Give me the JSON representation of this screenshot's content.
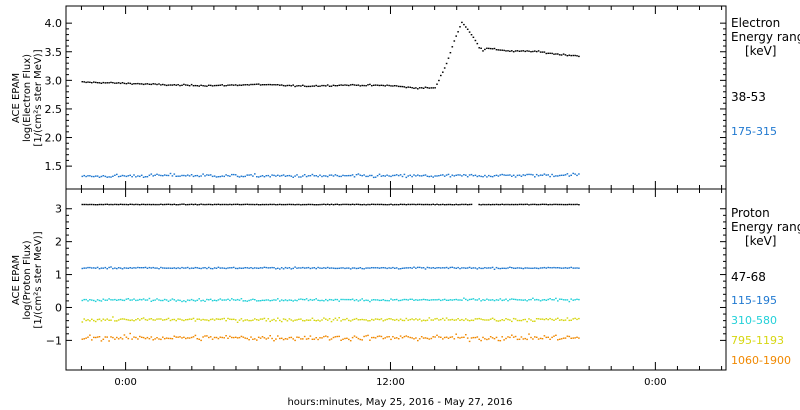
{
  "colors": {
    "axis": "#000000",
    "background": "#ffffff"
  },
  "x_axis": {
    "label": "hours:minutes, May 25, 2016 - May 27, 2016",
    "ticks": [
      {
        "hours": 0,
        "label": "0:00"
      },
      {
        "hours": 12,
        "label": "12:00"
      },
      {
        "hours": 24,
        "label": "0:00"
      }
    ],
    "minor_step_hours": 1,
    "range_hours": [
      -2.7,
      27.2
    ]
  },
  "chart_data": [
    {
      "type": "scatter",
      "ylabel_lines": [
        "ACE EPAM",
        "log(Electron Flux)",
        "[1/(cm²s ster MeV)]"
      ],
      "ylim": [
        1.1,
        4.3
      ],
      "yticks": [
        1.5,
        2.0,
        2.5,
        3.0,
        3.5,
        4.0
      ],
      "ytick_labels": [
        "1.5",
        "2.0",
        "2.5",
        "3.0",
        "3.5",
        "4.0"
      ],
      "legend": {
        "title_lines": [
          "Electron",
          "Energy range",
          "[keV]"
        ],
        "entries": [
          "38-53",
          "175-315"
        ]
      },
      "series": [
        {
          "name": "38-53",
          "color": "#000000",
          "x_hours": [
            -2.0,
            0.0,
            2.0,
            4.0,
            6.0,
            8.0,
            10.0,
            12.0,
            13.0,
            14.0,
            14.5,
            14.9,
            15.2,
            15.5,
            15.8,
            16.1,
            16.4,
            16.8,
            17.5,
            18.5,
            19.5,
            20.5
          ],
          "values": [
            2.98,
            2.96,
            2.93,
            2.92,
            2.94,
            2.91,
            2.93,
            2.92,
            2.88,
            2.88,
            3.3,
            3.75,
            4.03,
            3.88,
            3.72,
            3.55,
            3.57,
            3.55,
            3.52,
            3.52,
            3.47,
            3.44
          ]
        },
        {
          "name": "175-315",
          "color": "#1f78d0",
          "x_hours": [
            -2.0,
            2.0,
            6.0,
            10.0,
            14.0,
            18.0,
            20.5
          ],
          "values": [
            1.33,
            1.35,
            1.34,
            1.34,
            1.34,
            1.35,
            1.36
          ]
        }
      ]
    },
    {
      "type": "scatter",
      "ylabel_lines": [
        "ACE EPAM",
        "log(Proton Flux)",
        "[1/(cm²s ster MeV)]"
      ],
      "ylim": [
        -1.9,
        3.6
      ],
      "yticks": [
        -1,
        0,
        1,
        2,
        3
      ],
      "ytick_labels": [
        "−1",
        "0",
        "1",
        "2",
        "3"
      ],
      "legend": {
        "title_lines": [
          "Proton",
          "Energy range",
          "[keV]"
        ],
        "entries": [
          "47-68",
          "115-195",
          "310-580",
          "795-1193",
          "1060-1900"
        ]
      },
      "series": [
        {
          "name": "47-68",
          "color": "#000000",
          "x_hours": [
            -2.0,
            20.5
          ],
          "values": [
            3.15,
            3.15
          ]
        },
        {
          "name": "115-195",
          "color": "#1f78d0",
          "x_hours": [
            -2.0,
            20.5
          ],
          "values": [
            1.22,
            1.22
          ]
        },
        {
          "name": "310-580",
          "color": "#22d0d8",
          "x_hours": [
            -2.0,
            20.5
          ],
          "values": [
            0.25,
            0.25
          ]
        },
        {
          "name": "795-1193",
          "color": "#d6d610",
          "x_hours": [
            -2.0,
            20.5
          ],
          "values": [
            -0.35,
            -0.35
          ]
        },
        {
          "name": "1060-1900",
          "color": "#f08800",
          "x_hours": [
            -2.0,
            20.5
          ],
          "values": [
            -0.9,
            -0.9
          ]
        }
      ]
    }
  ]
}
